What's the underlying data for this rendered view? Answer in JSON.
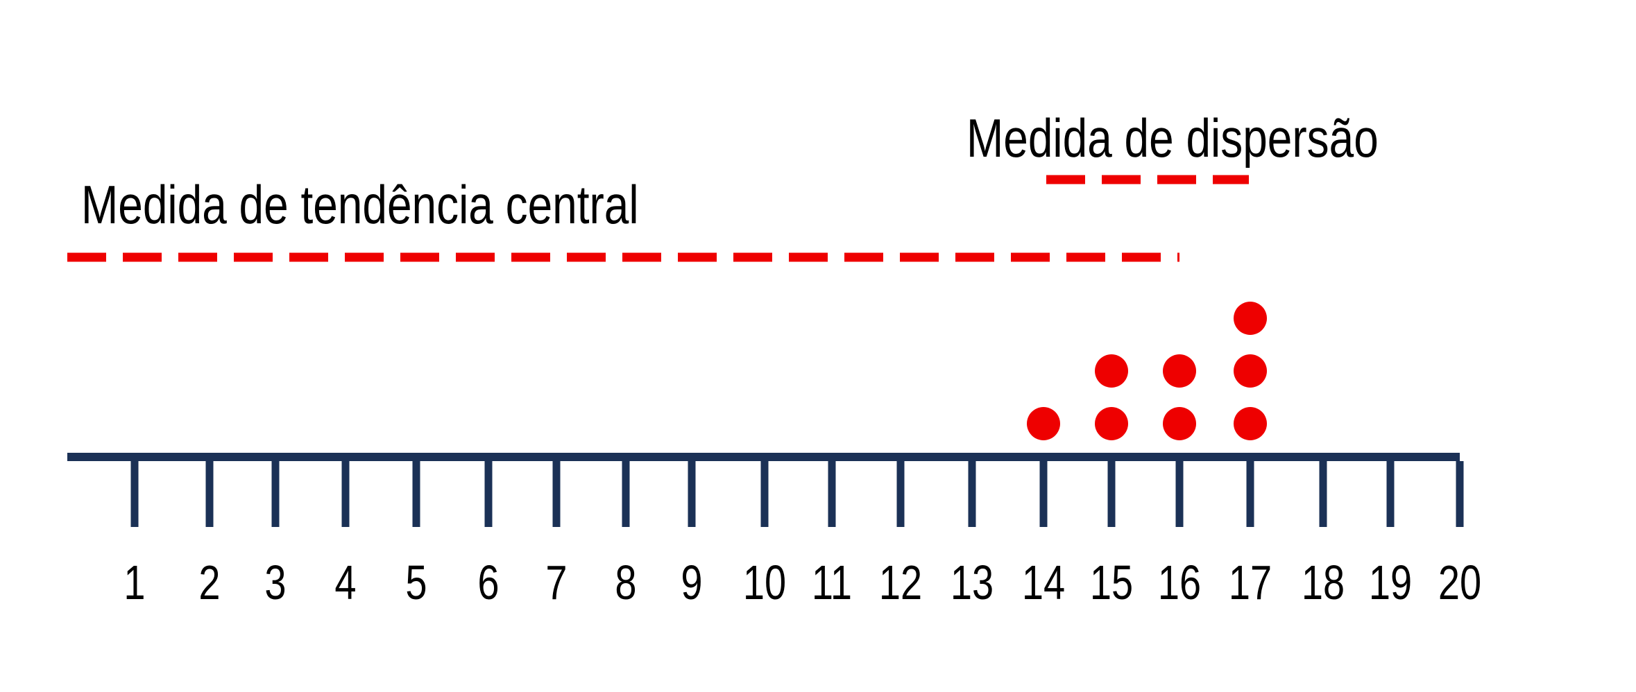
{
  "labels": {
    "central": "Medida de tendência central",
    "dispersion": "Medida de dispersão"
  },
  "axis": {
    "ticks": [
      "1",
      "2",
      "3",
      "4",
      "5",
      "6",
      "7",
      "8",
      "9",
      "10",
      "11",
      "12",
      "13",
      "14",
      "15",
      "16",
      "17",
      "18",
      "19",
      "20"
    ],
    "color": "#1b3156"
  },
  "chart_data": {
    "type": "scatter",
    "x": [
      14,
      15,
      15,
      16,
      16,
      17,
      17,
      17
    ],
    "counts": {
      "14": 1,
      "15": 2,
      "16": 2,
      "17": 3
    },
    "xlim": [
      1,
      20
    ]
  },
  "colors": {
    "accent": "#ee0000",
    "axis": "#1b3156",
    "text": "#000000"
  }
}
